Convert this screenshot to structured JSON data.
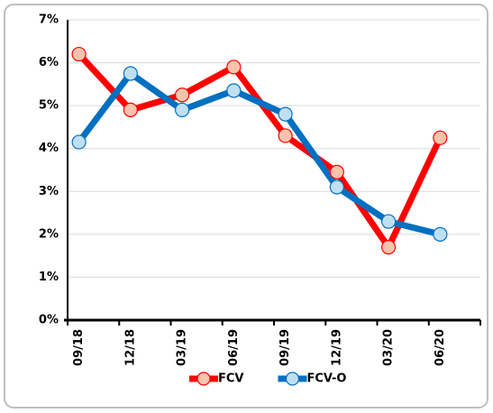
{
  "chart_data": {
    "type": "line",
    "categories": [
      "09/18",
      "12/18",
      "03/19",
      "06/19",
      "09/19",
      "12/19",
      "03/20",
      "06/20"
    ],
    "series": [
      {
        "name": "FCV",
        "color": "#ff0000",
        "marker_color": "#f9c4ac",
        "values": [
          6.2,
          4.9,
          5.25,
          5.9,
          4.3,
          3.45,
          1.7,
          4.25
        ]
      },
      {
        "name": "FCV-O",
        "color": "#0070c0",
        "marker_color": "#bfe0f2",
        "values": [
          4.15,
          5.75,
          4.9,
          5.35,
          4.8,
          3.1,
          2.3,
          2.0
        ]
      }
    ],
    "ylim": [
      0,
      7
    ],
    "yticks": [
      {
        "value": 0,
        "label": "0%"
      },
      {
        "value": 1,
        "label": "1%"
      },
      {
        "value": 2,
        "label": "2%"
      },
      {
        "value": 3,
        "label": "3%"
      },
      {
        "value": 4,
        "label": "4%"
      },
      {
        "value": 5,
        "label": "5%"
      },
      {
        "value": 6,
        "label": "6%"
      },
      {
        "value": 7,
        "label": "7%"
      }
    ],
    "grid": true,
    "legend": "bottom"
  }
}
